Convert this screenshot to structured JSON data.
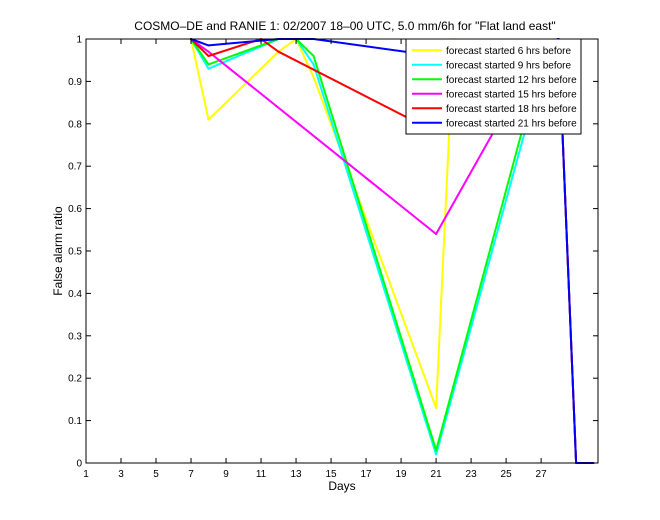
{
  "chart_data": {
    "type": "line",
    "title": "COSMO–DE and RANIE 1: 02/2007 18–00 UTC, 5.0 mm/6h for \"Flat land east\"",
    "xlabel": "Days",
    "ylabel": "False alarm ratio",
    "xlim": [
      1,
      30.25
    ],
    "ylim": [
      0,
      1
    ],
    "xticks": [
      1,
      3,
      5,
      7,
      9,
      11,
      13,
      15,
      17,
      19,
      21,
      23,
      25,
      27
    ],
    "yticks": [
      0,
      0.1,
      0.2,
      0.3,
      0.4,
      0.5,
      0.6,
      0.7,
      0.8,
      0.9,
      1
    ],
    "ytick_labels": [
      "0",
      "0.1",
      "0.2",
      "0.3",
      "0.4",
      "0.5",
      "0.6",
      "0.7",
      "0.8",
      "0.9",
      "1"
    ],
    "legend_position": "top-right",
    "grid": false,
    "series": [
      {
        "name": "forecast started 6 hrs before",
        "color": "#ffff00",
        "points": [
          [
            7,
            1
          ],
          [
            8,
            0.81
          ],
          [
            12,
            0.97
          ],
          [
            13,
            1
          ],
          [
            14,
            0.91
          ],
          [
            21,
            0.13
          ],
          [
            22,
            1
          ],
          [
            27,
            0.78
          ],
          [
            28,
            1
          ],
          [
            29,
            0
          ]
        ]
      },
      {
        "name": "forecast started 9 hrs before",
        "color": "#00ffff",
        "points": [
          [
            7,
            1
          ],
          [
            8,
            0.93
          ],
          [
            12,
            1
          ],
          [
            13,
            1
          ],
          [
            14,
            0.94
          ],
          [
            21,
            0.02
          ],
          [
            27,
            0.92
          ],
          [
            28,
            1
          ],
          [
            29,
            0
          ]
        ]
      },
      {
        "name": "forecast started 12 hrs before",
        "color": "#00ff00",
        "points": [
          [
            7,
            1
          ],
          [
            8,
            0.94
          ],
          [
            12,
            1
          ],
          [
            13,
            1
          ],
          [
            14,
            0.96
          ],
          [
            21,
            0.03
          ],
          [
            27,
            0.95
          ],
          [
            28,
            1
          ],
          [
            29,
            0
          ]
        ]
      },
      {
        "name": "forecast started 15 hrs before",
        "color": "#ff00ff",
        "points": [
          [
            7,
            1
          ],
          [
            8,
            0.97
          ],
          [
            21,
            0.54
          ],
          [
            27,
            0.98
          ],
          [
            28,
            1
          ],
          [
            29,
            0
          ]
        ]
      },
      {
        "name": "forecast started 18 hrs before",
        "color": "#ff0000",
        "points": [
          [
            7,
            1
          ],
          [
            8,
            0.96
          ],
          [
            11,
            1
          ],
          [
            12,
            0.97
          ],
          [
            21,
            0.78
          ],
          [
            27,
            0.99
          ],
          [
            28,
            1
          ],
          [
            29,
            0
          ]
        ]
      },
      {
        "name": "forecast started 21 hrs before",
        "color": "#0000ff",
        "points": [
          [
            7,
            1
          ],
          [
            8,
            0.985
          ],
          [
            12,
            1
          ],
          [
            13,
            1
          ],
          [
            14,
            1
          ],
          [
            21,
            0.96
          ],
          [
            27,
            0.99
          ],
          [
            28,
            1
          ],
          [
            29,
            0
          ],
          [
            30,
            0
          ]
        ]
      }
    ]
  }
}
